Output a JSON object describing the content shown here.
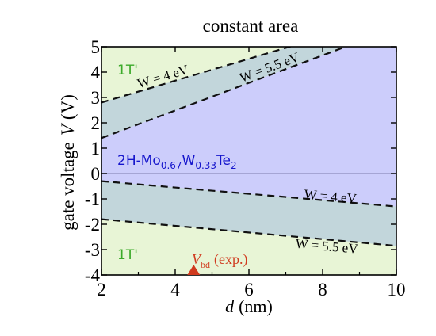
{
  "chart_data": {
    "type": "area",
    "title": "constant area",
    "xlabel": {
      "var": "d",
      "unit": "(nm)"
    },
    "ylabel": {
      "text": "gate voltage",
      "var": "V",
      "unit": "(V)"
    },
    "xlim": [
      2,
      10
    ],
    "ylim": [
      -4,
      5
    ],
    "xticks": [
      "2",
      "4",
      "6",
      "8",
      "10"
    ],
    "yticks": [
      "-4",
      "-3",
      "-2",
      "-1",
      "0",
      "1",
      "2",
      "3",
      "4",
      "5"
    ],
    "grid": false,
    "colors": {
      "phase_1T": "#e8f5d6",
      "phase_2H": "#cccdfb",
      "band": "#c2d6db",
      "dashed": "#111111",
      "zero_line": "#9898c8",
      "label_1T": "#3caa2a",
      "label_2H": "#1515cc",
      "vbd": "#d03a1e"
    },
    "region_labels": {
      "phase_1T_top": "1T'",
      "phase_1T_bottom": "1T'",
      "phase_2H": {
        "base": "2H-Mo",
        "sub1": "0.67",
        "mid": "W",
        "sub2": "0.33",
        "end": "Te",
        "sub3": "2"
      }
    },
    "series": [
      {
        "name": "W = 4 eV",
        "x": [
          2,
          10
        ],
        "y": [
          2.8,
          6.25
        ]
      },
      {
        "name": "W = 5.5 eV",
        "x": [
          2,
          10
        ],
        "y": [
          1.4,
          5.75
        ]
      },
      {
        "name": "W = 4 eV",
        "x": [
          2,
          10
        ],
        "y": [
          -0.3,
          -1.3
        ]
      },
      {
        "name": "W = 5.5 eV",
        "x": [
          2,
          10
        ],
        "y": [
          -1.8,
          -2.85
        ]
      }
    ],
    "annotations": {
      "vbd": {
        "var": "V",
        "sub": "bd",
        "note": "(exp.)",
        "x": 4.5,
        "y": -4
      }
    }
  }
}
